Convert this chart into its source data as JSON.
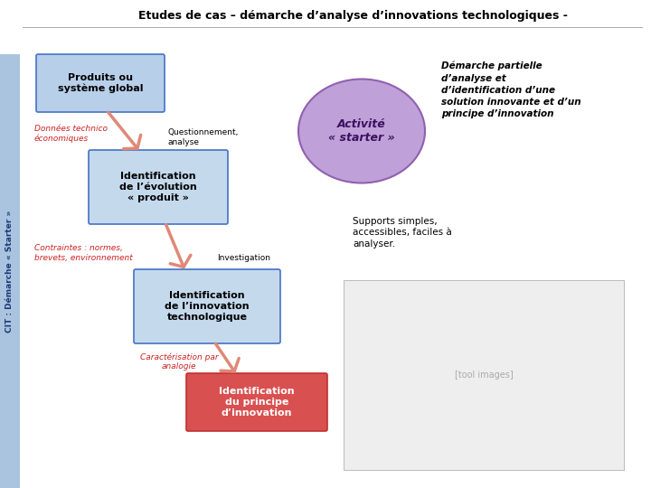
{
  "title": "Etudes de cas – démarche d’analyse d’innovations technologiques -",
  "sidebar_text": "CIT : Démarche « Starter »",
  "sidebar_color": "#aac4df",
  "bg_color": "#ffffff",
  "box1_text": "Produits ou\nsystème global",
  "box1_color": "#b8cfea",
  "box1_border": "#4472c4",
  "box2_text": "Identification\nde l’évolution\n« produit »",
  "box2_color": "#c5d9ed",
  "box2_border": "#4472c4",
  "box3_text": "Identification\nde l’innovation\ntechnologique",
  "box3_color": "#c5d9ed",
  "box3_border": "#4472c4",
  "box4_text": "Identification\ndu principe\nd’innovation",
  "box4_color": "#d95050",
  "box4_border": "#c03030",
  "ellipse_color": "#c0a0d8",
  "ellipse_border": "#9060b0",
  "ellipse_text": "Activité\n« starter »",
  "arrow_color": "#e08878",
  "label1": "Données technico\néconomiques",
  "label2": "Questionnement,\nanalyse",
  "label3": "Contraintes : normes,\nbrevets, environnement",
  "label4": "Investigation",
  "label5": "Caractérisation par\nanalogie",
  "right_title": "Démarche partielle\nd’analyse et\nd’identification d’une\nsolution innovante et d’un\nprincipe d’innovation",
  "right_support": "Supports simples,\naccessibles, faciles à\nanalyser."
}
